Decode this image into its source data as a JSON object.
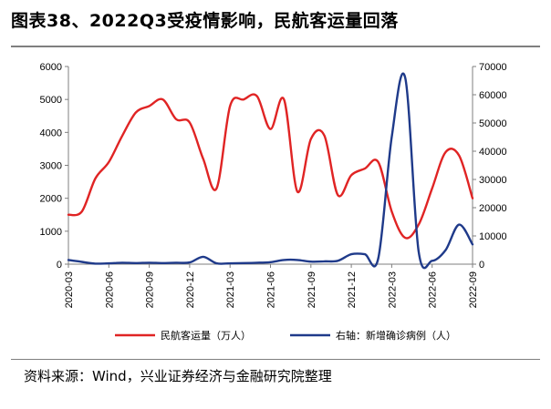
{
  "title": "图表38、2022Q3受疫情影响，民航客运量回落",
  "source": "资料来源：Wind，兴业证券经济与金融研究院整理",
  "colors": {
    "series_left": "#e02424",
    "series_right": "#1f3a8a",
    "axis": "#7f7f7f"
  },
  "chart_data": {
    "type": "line",
    "title": "",
    "xlabel": "",
    "ylabel": "",
    "x_ticks": [
      "2020-03",
      "2020-06",
      "2020-09",
      "2020-12",
      "2021-03",
      "2021-06",
      "2021-09",
      "2021-12",
      "2022-03",
      "2022-06",
      "2022-09"
    ],
    "y_left": {
      "range": [
        0,
        6000
      ],
      "ticks": [
        "0",
        "1000",
        "2000",
        "3000",
        "4000",
        "5000",
        "6000"
      ]
    },
    "y_right": {
      "range": [
        0,
        70000
      ],
      "ticks": [
        "0",
        "10000",
        "20000",
        "30000",
        "40000",
        "50000",
        "60000",
        "70000"
      ]
    },
    "grid": false,
    "legend_placement": "bottom",
    "series": [
      {
        "name": "民航客运量（万人）",
        "axis": "left",
        "x": [
          "2020-03",
          "2020-04",
          "2020-05",
          "2020-06",
          "2020-07",
          "2020-08",
          "2020-09",
          "2020-10",
          "2020-11",
          "2020-12",
          "2021-01",
          "2021-02",
          "2021-03",
          "2021-04",
          "2021-05",
          "2021-06",
          "2021-07",
          "2021-08",
          "2021-09",
          "2021-10",
          "2021-11",
          "2021-12",
          "2022-01",
          "2022-02",
          "2022-03",
          "2022-04",
          "2022-05",
          "2022-06",
          "2022-07",
          "2022-08",
          "2022-09"
        ],
        "values": [
          1500,
          1600,
          2600,
          3100,
          3900,
          4600,
          4800,
          5000,
          4400,
          4300,
          3200,
          2300,
          4800,
          5000,
          5100,
          4100,
          5000,
          2200,
          3800,
          3900,
          2100,
          2700,
          2900,
          3100,
          1600,
          800,
          1200,
          2300,
          3400,
          3300,
          2000
        ]
      },
      {
        "name": "右轴：新增确诊病例（人）",
        "axis": "right",
        "x": [
          "2020-03",
          "2020-04",
          "2020-05",
          "2020-06",
          "2020-07",
          "2020-08",
          "2020-09",
          "2020-10",
          "2020-11",
          "2020-12",
          "2021-01",
          "2021-02",
          "2021-03",
          "2021-04",
          "2021-05",
          "2021-06",
          "2021-07",
          "2021-08",
          "2021-09",
          "2021-10",
          "2021-11",
          "2021-12",
          "2022-01",
          "2022-02",
          "2022-03",
          "2022-04",
          "2022-05",
          "2022-06",
          "2022-07",
          "2022-08",
          "2022-09"
        ],
        "values": [
          1500,
          800,
          200,
          300,
          500,
          400,
          500,
          400,
          500,
          600,
          2600,
          300,
          300,
          400,
          500,
          700,
          1500,
          1500,
          900,
          1000,
          1200,
          3500,
          3500,
          2000,
          45000,
          66000,
          4500,
          1200,
          5000,
          14000,
          7000
        ]
      }
    ]
  }
}
